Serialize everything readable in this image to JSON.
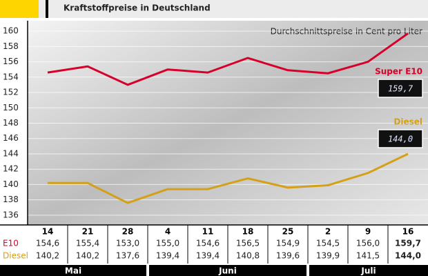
{
  "chart_data": {
    "type": "line",
    "title": "Kraftstoffpreise in Deutschland",
    "subtitle": "Durchschnittspreise in Cent pro Liter",
    "categories": [
      "14",
      "21",
      "28",
      "4",
      "11",
      "18",
      "25",
      "2",
      "9",
      "16"
    ],
    "groups": [
      "Mai",
      null,
      null,
      "Juni",
      null,
      null,
      null,
      "Juli",
      null,
      null
    ],
    "series": [
      {
        "name": "Super E10",
        "row_label": "E10",
        "color": "#d6002a",
        "values": [
          154.6,
          155.4,
          153.0,
          155.0,
          154.6,
          156.5,
          154.9,
          154.5,
          156.0,
          159.7
        ],
        "value_labels": [
          "154,6",
          "155,4",
          "153,0",
          "155,0",
          "154,6",
          "156,5",
          "154,9",
          "154,5",
          "156,0",
          "159,7"
        ]
      },
      {
        "name": "Diesel",
        "row_label": "Diesel",
        "color": "#d4a017",
        "values": [
          140.2,
          140.2,
          137.6,
          139.4,
          139.4,
          140.8,
          139.6,
          139.9,
          141.5,
          144.0
        ],
        "value_labels": [
          "140,2",
          "140,2",
          "137,6",
          "139,4",
          "139,4",
          "140,8",
          "139,6",
          "139,9",
          "141,5",
          "144,0"
        ]
      }
    ],
    "ylim": [
      135,
      161
    ],
    "yticks": [
      136,
      138,
      140,
      142,
      144,
      146,
      148,
      150,
      152,
      154,
      156,
      158,
      160
    ],
    "grid": true
  }
}
